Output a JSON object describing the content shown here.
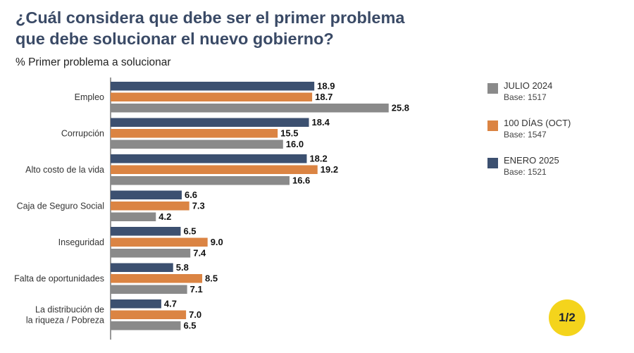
{
  "header": {
    "title_line1": "¿Cuál considera que debe ser el primer problema",
    "title_line2": "que debe solucionar el nuevo gobierno?",
    "subtitle": "% Primer problema a solucionar"
  },
  "chart_data": {
    "type": "bar",
    "orientation": "horizontal",
    "title": "¿Cuál considera que debe ser el primer problema que debe solucionar el nuevo gobierno?",
    "ylabel": "% Primer problema a solucionar",
    "categories": [
      [
        "Empleo"
      ],
      [
        "Corrupción"
      ],
      [
        "Alto costo de la vida"
      ],
      [
        "Caja de Seguro Social"
      ],
      [
        "Inseguridad"
      ],
      [
        "Falta de oportunidades"
      ],
      [
        "La distribución de",
        "la riqueza / Pobreza"
      ]
    ],
    "series": [
      {
        "name": "ENERO 2025",
        "base": "Base: 1521",
        "color": "#3c5070",
        "values": [
          18.9,
          18.4,
          18.2,
          6.6,
          6.5,
          5.8,
          4.7
        ]
      },
      {
        "name": "100 DÍAS (OCT)",
        "base": "Base: 1547",
        "color": "#db8443",
        "values": [
          18.7,
          15.5,
          19.2,
          7.3,
          9.0,
          8.5,
          7.0
        ]
      },
      {
        "name": "JULIO 2024",
        "base": "Base: 1517",
        "color": "#8a8a8a",
        "values": [
          25.8,
          16.0,
          16.6,
          4.2,
          7.4,
          7.1,
          6.5
        ]
      }
    ],
    "xlim": [
      0,
      30
    ],
    "legend": "right"
  },
  "legend": [
    {
      "name": "JULIO 2024",
      "base": "Base: 1517",
      "color": "#8a8a8a"
    },
    {
      "name": "100 DÍAS (OCT)",
      "base": "Base: 1547",
      "color": "#db8443"
    },
    {
      "name": "ENERO 2025",
      "base": "Base: 1521",
      "color": "#3c5070"
    }
  ],
  "page_indicator": "1/2"
}
